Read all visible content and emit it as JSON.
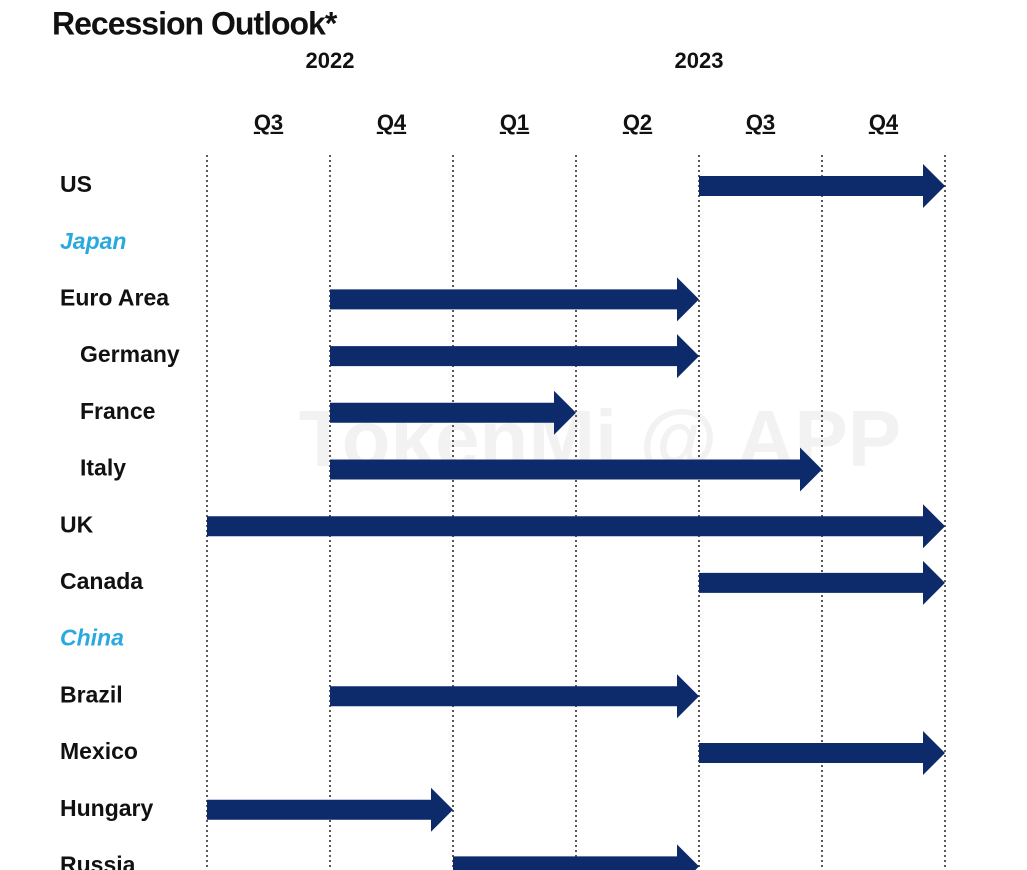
{
  "chart_data": {
    "type": "gantt",
    "title": "Recession Outlook*",
    "watermark": "TokenMi @ APP",
    "years": [
      {
        "label": "2022",
        "at": 1
      },
      {
        "label": "2023",
        "at": 4
      }
    ],
    "categories": [
      "Q3",
      "Q4",
      "Q1",
      "Q2",
      "Q3",
      "Q4"
    ],
    "xlim": [
      0,
      6
    ],
    "color": "#0d2a6b",
    "rows": [
      {
        "name": "US",
        "start": 4,
        "end": 6,
        "label_color": "#111111"
      },
      {
        "name": "Japan",
        "start": null,
        "end": null,
        "label_color": "#29a9e0",
        "italic": true
      },
      {
        "name": "Euro Area",
        "start": 1,
        "end": 4,
        "label_color": "#111111"
      },
      {
        "name": "Germany",
        "start": 1,
        "end": 4,
        "label_color": "#111111",
        "indent": true
      },
      {
        "name": "France",
        "start": 1,
        "end": 3,
        "label_color": "#111111",
        "indent": true
      },
      {
        "name": "Italy",
        "start": 1,
        "end": 5,
        "label_color": "#111111",
        "indent": true
      },
      {
        "name": "UK",
        "start": 0,
        "end": 6,
        "label_color": "#111111"
      },
      {
        "name": "Canada",
        "start": 4,
        "end": 6,
        "label_color": "#111111"
      },
      {
        "name": "China",
        "start": null,
        "end": null,
        "label_color": "#29a9e0",
        "italic": true
      },
      {
        "name": "Brazil",
        "start": 1,
        "end": 4,
        "label_color": "#111111"
      },
      {
        "name": "Mexico",
        "start": 4,
        "end": 6,
        "label_color": "#111111"
      },
      {
        "name": "Hungary",
        "start": 0,
        "end": 2,
        "label_color": "#111111"
      },
      {
        "name": "Russia",
        "start": 2,
        "end": 4,
        "label_color": "#111111"
      }
    ]
  }
}
